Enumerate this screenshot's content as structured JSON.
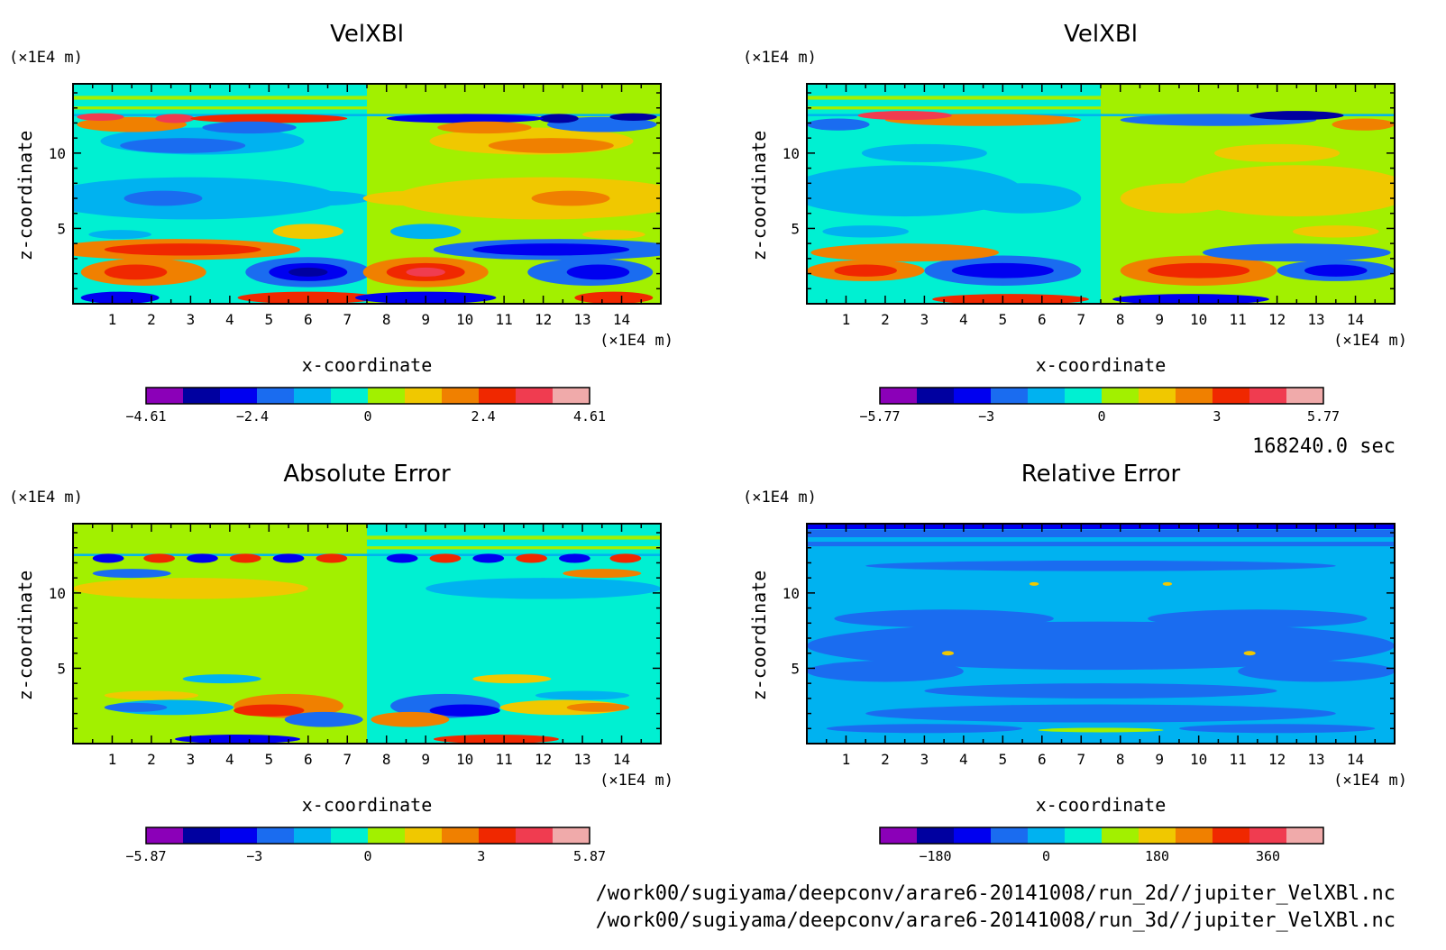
{
  "footer": {
    "time": "168240.0 sec",
    "path_2d": "/work00/sugiyama/deepconv/arare6-20141008/run_2d//jupiter_VelXBl.nc",
    "path_3d": "/work00/sugiyama/deepconv/arare6-20141008/run_3d//jupiter_VelXBl.nc"
  },
  "chart_data": [
    {
      "type": "heatmap",
      "title": "VelXBl",
      "xlabel": "x-coordinate",
      "ylabel": "z-coordinate",
      "xunit": "(×1E4 m)",
      "yunit": "(×1E4 m)",
      "xlim": [
        0,
        15
      ],
      "ylim": [
        0,
        14.6
      ],
      "xticks": [
        "1",
        "2",
        "3",
        "4",
        "5",
        "6",
        "7",
        "8",
        "9",
        "10",
        "11",
        "12",
        "13",
        "14"
      ],
      "yticks": [
        "5",
        "10"
      ],
      "colorbar": {
        "min": -4.61,
        "max": 4.61,
        "labels": [
          "-4.61",
          "-2.4",
          "0",
          "2.4",
          "4.61"
        ],
        "label_values": [
          -4.61,
          -2.4,
          0,
          2.4,
          4.61
        ],
        "colors": [
          "#8b00b8",
          "#0000a0",
          "#0000f0",
          "#1a6cf0",
          "#00b2f0",
          "#00f0d2",
          "#a2f000",
          "#f0c800",
          "#f08000",
          "#f02800",
          "#f03c50",
          "#f0aaaa"
        ]
      },
      "structure": "left half mirrored against right half with sign flip at x=7.5"
    },
    {
      "type": "heatmap",
      "title": "VelXBl",
      "xlabel": "x-coordinate",
      "ylabel": "z-coordinate",
      "xunit": "(×1E4 m)",
      "yunit": "(×1E4 m)",
      "xlim": [
        0,
        15
      ],
      "ylim": [
        0,
        14.6
      ],
      "xticks": [
        "1",
        "2",
        "3",
        "4",
        "5",
        "6",
        "7",
        "8",
        "9",
        "10",
        "11",
        "12",
        "13",
        "14"
      ],
      "yticks": [
        "5",
        "10"
      ],
      "colorbar": {
        "min": -5.77,
        "max": 5.77,
        "labels": [
          "-5.77",
          "-3",
          "0",
          "3",
          "5.77"
        ],
        "label_values": [
          -5.77,
          -3,
          0,
          3,
          5.77
        ],
        "colors": [
          "#8b00b8",
          "#0000a0",
          "#0000f0",
          "#1a6cf0",
          "#00b2f0",
          "#00f0d2",
          "#a2f000",
          "#f0c800",
          "#f08000",
          "#f02800",
          "#f03c50",
          "#f0aaaa"
        ]
      }
    },
    {
      "type": "heatmap",
      "title": "Absolute Error",
      "xlabel": "x-coordinate",
      "ylabel": "z-coordinate",
      "xunit": "(×1E4 m)",
      "yunit": "(×1E4 m)",
      "xlim": [
        0,
        15
      ],
      "ylim": [
        0,
        14.6
      ],
      "xticks": [
        "1",
        "2",
        "3",
        "4",
        "5",
        "6",
        "7",
        "8",
        "9",
        "10",
        "11",
        "12",
        "13",
        "14"
      ],
      "yticks": [
        "5",
        "10"
      ],
      "colorbar": {
        "min": -5.87,
        "max": 5.87,
        "labels": [
          "-5.87",
          "-3",
          "0",
          "3",
          "5.87"
        ],
        "label_values": [
          -5.87,
          -3,
          0,
          3,
          5.87
        ],
        "colors": [
          "#8b00b8",
          "#0000a0",
          "#0000f0",
          "#1a6cf0",
          "#00b2f0",
          "#00f0d2",
          "#a2f000",
          "#f0c800",
          "#f08000",
          "#f02800",
          "#f03c50",
          "#f0aaaa"
        ]
      }
    },
    {
      "type": "heatmap",
      "title": "Relative Error",
      "xlabel": "x-coordinate",
      "ylabel": "z-coordinate",
      "xunit": "(×1E4 m)",
      "yunit": "(×1E4 m)",
      "xlim": [
        0,
        15
      ],
      "ylim": [
        0,
        14.6
      ],
      "xticks": [
        "1",
        "2",
        "3",
        "4",
        "5",
        "6",
        "7",
        "8",
        "9",
        "10",
        "11",
        "12",
        "13",
        "14"
      ],
      "yticks": [
        "5",
        "10"
      ],
      "colorbar": {
        "min": -270,
        "max": 450,
        "labels": [
          "-180",
          "0",
          "180",
          "360"
        ],
        "label_values": [
          -180,
          0,
          180,
          360
        ],
        "colors": [
          "#8b00b8",
          "#0000a0",
          "#0000f0",
          "#1a6cf0",
          "#00b2f0",
          "#00f0d2",
          "#a2f000",
          "#f0c800",
          "#f08000",
          "#f02800",
          "#f03c50",
          "#f0aaaa"
        ]
      }
    }
  ]
}
